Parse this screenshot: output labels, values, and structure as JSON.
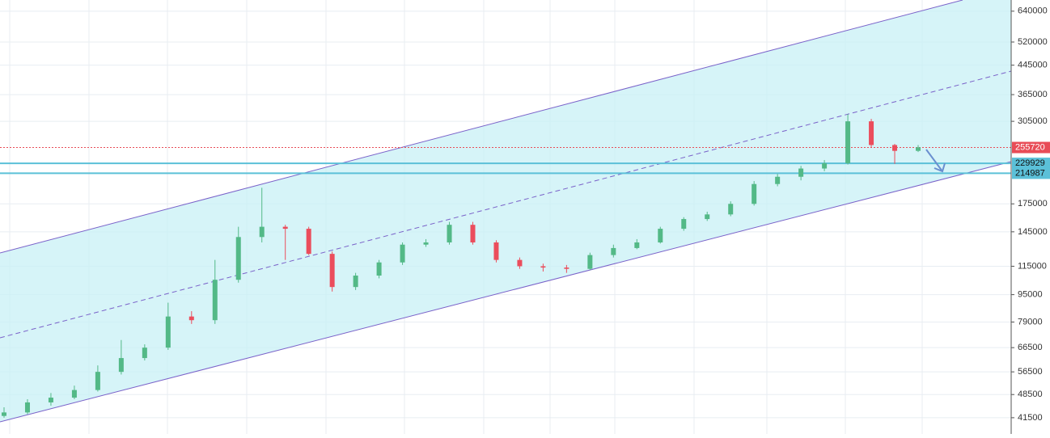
{
  "chart_data": {
    "type": "candlestick",
    "log_scale": true,
    "grid": true,
    "up_color": "#53b987",
    "down_color": "#eb4d5c",
    "ylim": [
      37200,
      690000
    ],
    "yticks": [
      41500,
      48500,
      56500,
      66500,
      79000,
      95000,
      115000,
      145000,
      175000,
      305000,
      365000,
      445000,
      520000,
      640000
    ],
    "price_lines": [
      {
        "value": 255720,
        "color": "#e84c57"
      },
      {
        "value": 229929,
        "color": "#5bc0d8"
      },
      {
        "value": 214987,
        "color": "#5bc0d8"
      }
    ],
    "open": [
      42000,
      43000,
      46000,
      47500,
      50000,
      56500,
      62000,
      66500,
      82000,
      80000,
      105000,
      140000,
      150000,
      148000,
      125000,
      100000,
      108000,
      118000,
      133000,
      135000,
      152000,
      135000,
      120000,
      115000,
      114000,
      113000,
      124000,
      130000,
      135000,
      148000,
      158000,
      163000,
      175000,
      200000,
      210000,
      222000,
      230000,
      305000,
      260000,
      250000
    ],
    "high": [
      44500,
      47000,
      49000,
      51500,
      59000,
      70000,
      68000,
      90000,
      85000,
      120000,
      150000,
      195000,
      152000,
      150000,
      127000,
      110000,
      120000,
      135000,
      138000,
      155000,
      155000,
      137000,
      122000,
      117000,
      116000,
      126000,
      133000,
      138000,
      150000,
      160000,
      166000,
      178000,
      204000,
      214000,
      226000,
      235000,
      320000,
      310000,
      262000,
      260000
    ],
    "low": [
      41500,
      42500,
      45000,
      47000,
      49500,
      55500,
      61000,
      65500,
      78000,
      78000,
      103000,
      135000,
      120000,
      124000,
      97000,
      98000,
      106000,
      116000,
      131000,
      133000,
      133000,
      118000,
      113000,
      111000,
      110000,
      112000,
      122000,
      129000,
      134000,
      146000,
      156000,
      161000,
      173000,
      197000,
      205000,
      218000,
      228000,
      255000,
      229000,
      248000
    ],
    "close": [
      43000,
      46000,
      47500,
      50000,
      56500,
      62000,
      66500,
      82000,
      80000,
      105000,
      140000,
      150000,
      148000,
      125000,
      100000,
      108000,
      118000,
      133000,
      135000,
      152000,
      135000,
      120000,
      115000,
      114000,
      113000,
      124000,
      130000,
      135000,
      148000,
      158000,
      163000,
      175000,
      200000,
      210000,
      222000,
      230000,
      305000,
      260000,
      250000,
      256000
    ]
  }
}
